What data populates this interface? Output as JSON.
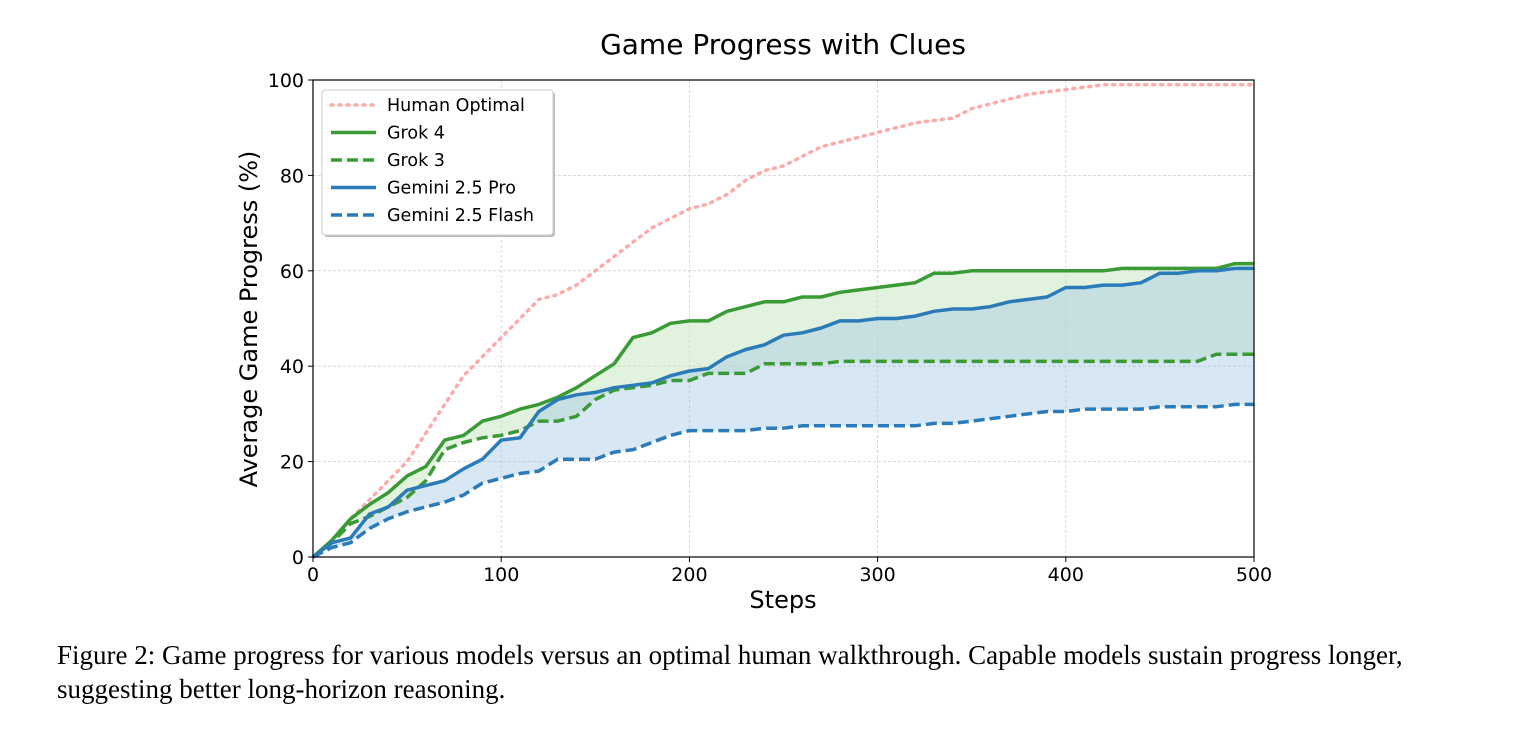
{
  "chart_data": {
    "type": "line",
    "title": "Game Progress with Clues",
    "xlabel": "Steps",
    "ylabel": "Average Game Progress (%)",
    "xlim": [
      0,
      500
    ],
    "ylim": [
      0,
      100
    ],
    "xticks": [
      0,
      100,
      200,
      300,
      400,
      500
    ],
    "yticks": [
      0,
      20,
      40,
      60,
      80,
      100
    ],
    "grid": true,
    "legend_position": "top-left",
    "x": [
      0,
      10,
      20,
      30,
      40,
      50,
      60,
      70,
      80,
      90,
      100,
      110,
      120,
      130,
      140,
      150,
      160,
      170,
      180,
      190,
      200,
      210,
      220,
      230,
      240,
      250,
      260,
      270,
      280,
      290,
      300,
      310,
      320,
      330,
      340,
      350,
      360,
      370,
      380,
      390,
      400,
      410,
      420,
      430,
      440,
      450,
      460,
      470,
      480,
      490,
      500
    ],
    "series": [
      {
        "name": "Human Optimal",
        "color": "#ffaaaa",
        "style": "dotted",
        "values": [
          0,
          3,
          8,
          12,
          16,
          20,
          26,
          32,
          38,
          42,
          46,
          50,
          54,
          55,
          57,
          60,
          63,
          66,
          69,
          71,
          73,
          74,
          76,
          79,
          81,
          82,
          84,
          86,
          87,
          88,
          89,
          90,
          91,
          91.5,
          92,
          94,
          95,
          96,
          97,
          97.5,
          98,
          98.5,
          99,
          99,
          99,
          99,
          99,
          99,
          99,
          99,
          99
        ]
      },
      {
        "name": "Grok 4",
        "color": "#3a9a35",
        "style": "solid",
        "values": [
          0,
          3.5,
          8,
          11,
          13.5,
          17,
          19,
          24.5,
          25.5,
          28.5,
          29.5,
          31,
          32,
          33.5,
          35.5,
          38,
          40.5,
          46,
          47,
          49,
          49.5,
          49.5,
          51.5,
          52.5,
          53.5,
          53.5,
          54.5,
          54.5,
          55.5,
          56,
          56.5,
          57,
          57.5,
          59.5,
          59.5,
          60,
          60,
          60,
          60,
          60,
          60,
          60,
          60,
          60.5,
          60.5,
          60.5,
          60.5,
          60.5,
          60.5,
          61.5,
          61.5
        ]
      },
      {
        "name": "Grok 3",
        "color": "#3a9a35",
        "style": "dashed",
        "values": [
          0,
          3,
          7,
          8.5,
          10.5,
          12.5,
          16,
          22.5,
          24,
          25,
          25.5,
          26.5,
          28.5,
          28.5,
          29.5,
          33,
          35,
          35.5,
          36,
          37,
          37,
          38.5,
          38.5,
          38.5,
          40.5,
          40.5,
          40.5,
          40.5,
          41,
          41,
          41,
          41,
          41,
          41,
          41,
          41,
          41,
          41,
          41,
          41,
          41,
          41,
          41,
          41,
          41,
          41,
          41,
          41,
          42.5,
          42.5,
          42.5
        ]
      },
      {
        "name": "Gemini 2.5 Pro",
        "color": "#2b7bb9",
        "style": "solid",
        "values": [
          0,
          3,
          4,
          9,
          10.5,
          14,
          15,
          16,
          18.5,
          20.5,
          24.5,
          25,
          30.5,
          33,
          34,
          34.5,
          35.5,
          36,
          36.5,
          38,
          39,
          39.5,
          42,
          43.5,
          44.5,
          46.5,
          47,
          48,
          49.5,
          49.5,
          50,
          50,
          50.5,
          51.5,
          52,
          52,
          52.5,
          53.5,
          54,
          54.5,
          56.5,
          56.5,
          57,
          57,
          57.5,
          59.5,
          59.5,
          60,
          60,
          60.5,
          60.5
        ]
      },
      {
        "name": "Gemini 2.5 Flash",
        "color": "#2b7bb9",
        "style": "dashed",
        "values": [
          0,
          2,
          3,
          6,
          8,
          9.5,
          10.5,
          11.5,
          13,
          15.5,
          16.5,
          17.5,
          18,
          20.5,
          20.5,
          20.5,
          22,
          22.5,
          24,
          25.5,
          26.5,
          26.5,
          26.5,
          26.5,
          27,
          27,
          27.5,
          27.5,
          27.5,
          27.5,
          27.5,
          27.5,
          27.5,
          28,
          28,
          28.5,
          29,
          29.5,
          30,
          30.5,
          30.5,
          31,
          31,
          31,
          31,
          31.5,
          31.5,
          31.5,
          31.5,
          32,
          32
        ]
      }
    ],
    "fills": [
      {
        "between": [
          "Grok 3",
          "Grok 4"
        ],
        "color": "#c9e7c4",
        "opacity": 0.55
      },
      {
        "between": [
          "Gemini 2.5 Flash",
          "Gemini 2.5 Pro"
        ],
        "color": "#9dc4e3",
        "opacity": 0.4
      }
    ]
  },
  "caption": "Figure 2: Game progress for various models versus an optimal human walkthrough. Capable models sustain progress longer, suggesting better long-horizon reasoning."
}
